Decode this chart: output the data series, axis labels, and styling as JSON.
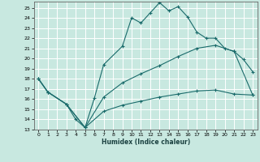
{
  "xlabel": "Humidex (Indice chaleur)",
  "bg_color": "#c8e8e0",
  "grid_color": "#ffffff",
  "line_color": "#1a6b6b",
  "xlim": [
    -0.5,
    23.5
  ],
  "ylim": [
    13,
    25.6
  ],
  "xticks": [
    0,
    1,
    2,
    3,
    4,
    5,
    6,
    7,
    8,
    9,
    10,
    11,
    12,
    13,
    14,
    15,
    16,
    17,
    18,
    19,
    20,
    21,
    22,
    23
  ],
  "yticks": [
    13,
    14,
    15,
    16,
    17,
    18,
    19,
    20,
    21,
    22,
    23,
    24,
    25
  ],
  "line1_x": [
    0,
    1,
    3,
    4,
    5,
    6,
    7,
    9,
    10,
    11,
    12,
    13,
    14,
    15,
    16,
    17,
    18,
    19,
    20,
    21,
    22,
    23
  ],
  "line1_y": [
    18.0,
    16.7,
    15.5,
    14.0,
    13.2,
    16.1,
    19.4,
    21.2,
    24.0,
    23.5,
    24.5,
    25.5,
    24.7,
    25.1,
    24.1,
    22.6,
    22.0,
    22.0,
    21.0,
    20.7,
    19.9,
    18.7
  ],
  "line2_x": [
    0,
    1,
    3,
    5,
    7,
    9,
    11,
    13,
    15,
    17,
    19,
    21,
    23
  ],
  "line2_y": [
    18.0,
    16.7,
    15.5,
    13.2,
    16.2,
    17.6,
    18.5,
    19.3,
    20.2,
    21.0,
    21.3,
    20.7,
    16.4
  ],
  "line3_x": [
    0,
    1,
    3,
    5,
    7,
    9,
    11,
    13,
    15,
    17,
    19,
    21,
    23
  ],
  "line3_y": [
    18.0,
    16.7,
    15.5,
    13.2,
    14.8,
    15.4,
    15.8,
    16.2,
    16.5,
    16.8,
    16.9,
    16.5,
    16.4
  ]
}
